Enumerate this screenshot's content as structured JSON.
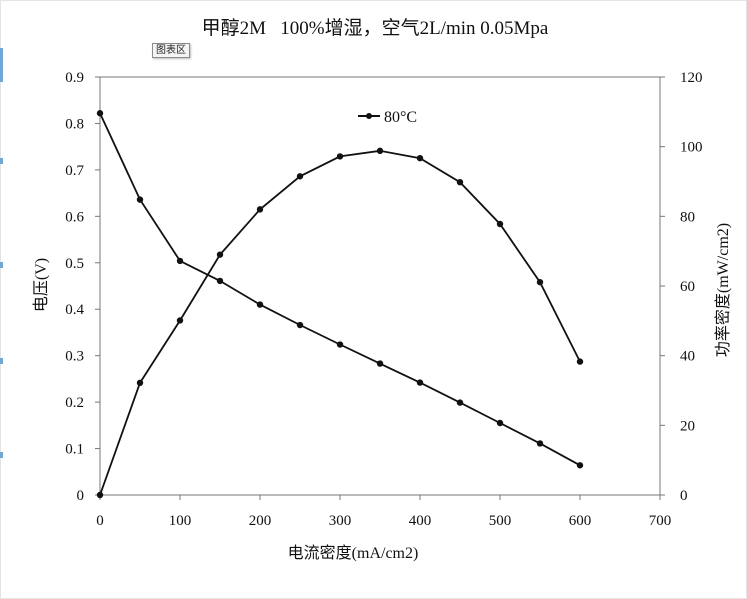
{
  "chart_area_tag": "图表区",
  "chart_data": {
    "type": "line",
    "title": "甲醇2M   100%增湿，空气2L/min 0.05Mpa",
    "xlabel": "电流密度(mA/cm2)",
    "ylabel": "电压(V)",
    "y2label": "功率密度(mW/cm2)",
    "xlim": [
      0,
      700
    ],
    "xticks": [
      "0",
      "100",
      "200",
      "300",
      "400",
      "500",
      "600",
      "700"
    ],
    "ylim": [
      0,
      0.9
    ],
    "yticks": [
      "0",
      "0.1",
      "0.2",
      "0.3",
      "0.4",
      "0.5",
      "0.6",
      "0.7",
      "0.8",
      "0.9"
    ],
    "y2lim": [
      0,
      120
    ],
    "y2ticks": [
      "0",
      "20",
      "40",
      "60",
      "80",
      "100",
      "120"
    ],
    "grid": false,
    "legend": {
      "position": "top-center",
      "label": "80°C"
    },
    "series": [
      {
        "name": "80°C",
        "axis": "left",
        "x": [
          0,
          50,
          100,
          150,
          200,
          250,
          300,
          350,
          400,
          450,
          500,
          550,
          600
        ],
        "values": [
          0.822,
          0.636,
          0.504,
          0.461,
          0.41,
          0.366,
          0.324,
          0.283,
          0.242,
          0.199,
          0.155,
          0.111,
          0.064
        ]
      },
      {
        "name": "",
        "axis": "right",
        "x": [
          0,
          50,
          100,
          150,
          200,
          250,
          300,
          350,
          400,
          450,
          500,
          550,
          600
        ],
        "values": [
          0,
          32.2,
          50.1,
          69.0,
          82.0,
          91.5,
          97.2,
          98.8,
          96.7,
          89.8,
          77.8,
          61.1,
          38.3
        ]
      }
    ],
    "colors": {
      "line": "#111111",
      "axis": "#777777",
      "text": "#111111"
    }
  }
}
